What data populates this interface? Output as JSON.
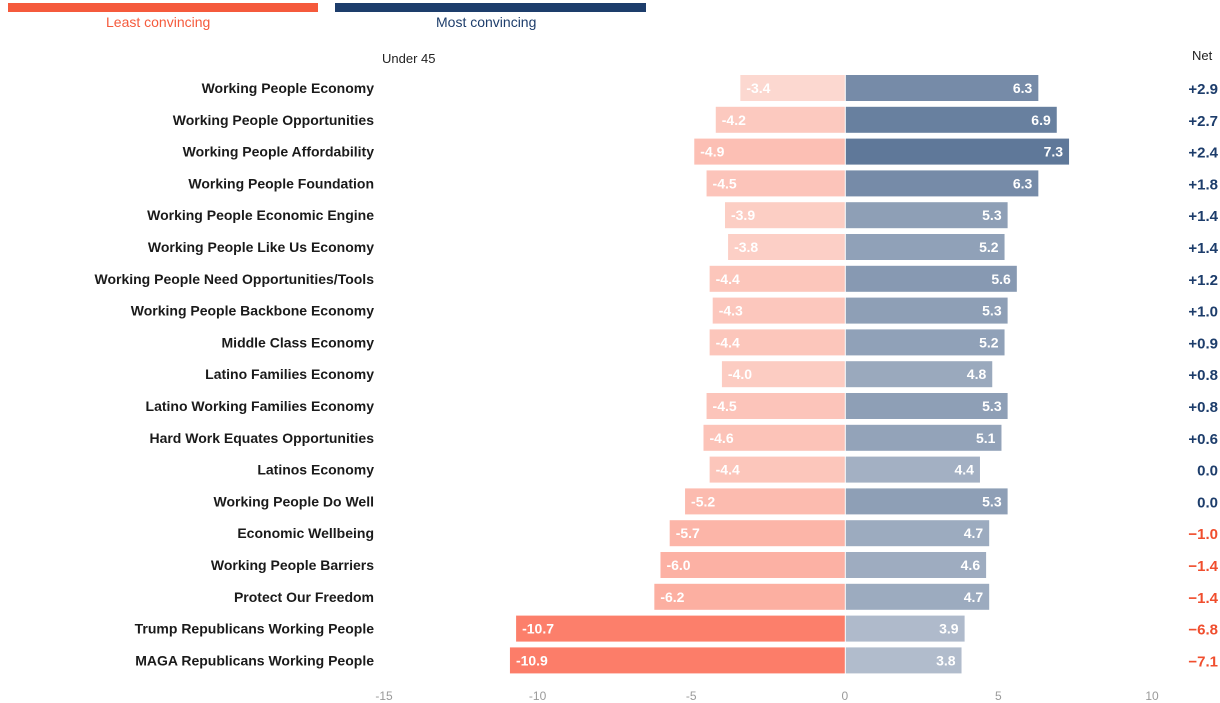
{
  "legend": {
    "least_label": "Least convincing",
    "most_label": "Most convincing",
    "least_color": "#f55a3c",
    "most_color": "#1d3d6b"
  },
  "subgroup": "Under 45",
  "net_header": "Net",
  "chart_data": {
    "type": "bar",
    "orientation": "horizontal-diverging",
    "xlim": [
      -15,
      10
    ],
    "xticks": [
      -15,
      -10,
      -5,
      0,
      5,
      10
    ],
    "categories": [
      "Working People Economy",
      "Working People Opportunities",
      "Working People Affordability",
      "Working People Foundation",
      "Working People Economic Engine",
      "Working People Like Us Economy",
      "Working People Need Opportunities/Tools",
      "Working People Backbone Economy",
      "Middle Class Economy",
      "Latino Families Economy",
      "Latino Working Families Economy",
      "Hard Work Equates Opportunities",
      "Latinos Economy",
      "Working People Do Well",
      "Economic Wellbeing",
      "Working People Barriers",
      "Protect Our Freedom",
      "Trump Republicans Working People",
      "MAGA Republicans Working People"
    ],
    "series": [
      {
        "name": "Least convincing",
        "values": [
          -3.4,
          -4.2,
          -4.9,
          -4.5,
          -3.9,
          -3.8,
          -4.4,
          -4.3,
          -4.4,
          -4.0,
          -4.5,
          -4.6,
          -4.4,
          -5.2,
          -5.7,
          -6.0,
          -6.2,
          -10.7,
          -10.9
        ],
        "labels": [
          "-3.4",
          "-4.2",
          "-4.9",
          "-4.5",
          "-3.9",
          "-3.8",
          "-4.4",
          "-4.3",
          "-4.4",
          "-4.0",
          "-4.5",
          "-4.6",
          "-4.4",
          "-5.2",
          "-5.7",
          "-6.0",
          "-6.2",
          "-10.7",
          "-10.9"
        ]
      },
      {
        "name": "Most convincing",
        "values": [
          6.3,
          6.9,
          7.3,
          6.3,
          5.3,
          5.2,
          5.6,
          5.3,
          5.2,
          4.8,
          5.3,
          5.1,
          4.4,
          5.3,
          4.7,
          4.6,
          4.7,
          3.9,
          3.8
        ],
        "labels": [
          "6.3",
          "6.9",
          "7.3",
          "6.3",
          "5.3",
          "5.2",
          "5.6",
          "5.3",
          "5.2",
          "4.8",
          "5.3",
          "5.1",
          "4.4",
          "5.3",
          "4.7",
          "4.6",
          "4.7",
          "3.9",
          "3.8"
        ]
      }
    ],
    "net": [
      "+2.9",
      "+2.7",
      "+2.4",
      "+1.8",
      "+1.4",
      "+1.4",
      "+1.2",
      "+1.0",
      "+0.9",
      "+0.8",
      "+0.8",
      "+0.6",
      "0.0",
      "0.0",
      "−1.0",
      "−1.4",
      "−1.4",
      "−6.8",
      "−7.1"
    ],
    "net_positive_color": "#1d3d6b",
    "net_negative_color": "#f04e2e"
  }
}
